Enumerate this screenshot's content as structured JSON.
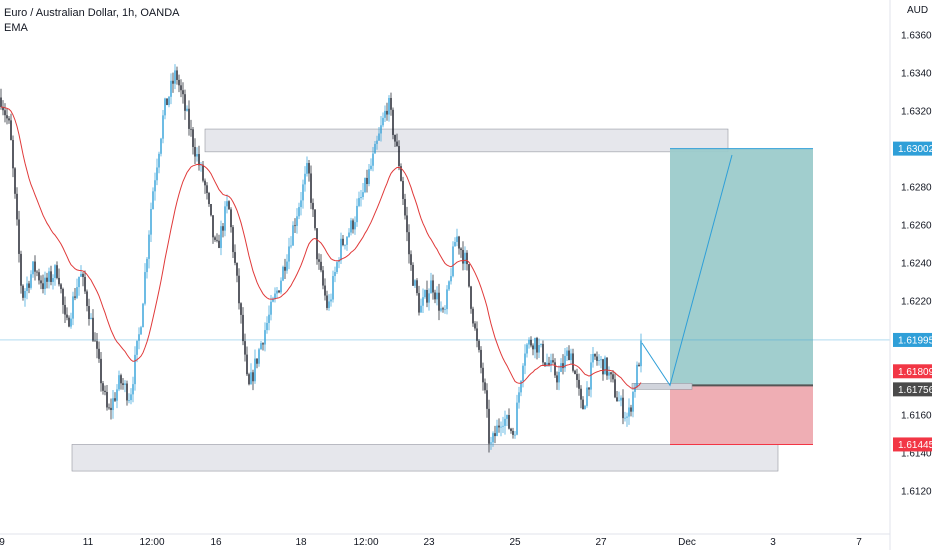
{
  "header": {
    "symbol_line": "Euro / Australian Dollar, 1h, OANDA",
    "indicator": "EMA",
    "currency": "AUD"
  },
  "chart_data": {
    "type": "candlestick",
    "ylim": [
      1.6105,
      1.6375
    ],
    "y_ticks": [
      "1.63600",
      "1.63400",
      "1.63200",
      "1.62800",
      "1.62600",
      "1.62400",
      "1.62200",
      "1.61600",
      "1.61400",
      "1.61200"
    ],
    "x_ticks": [
      "9",
      "11",
      "12:00",
      "16",
      "18",
      "12:00",
      "23",
      "25",
      "27",
      "Dec",
      "3",
      "7"
    ],
    "price_labels": [
      {
        "text": "1.63002",
        "value": 1.63002,
        "color": "#2f9fd8"
      },
      {
        "text": "1.61995",
        "value": 1.61995,
        "color": "#2f9fd8"
      },
      {
        "text": "1.61809",
        "value": 1.61809,
        "color": "#f23645"
      },
      {
        "text": "1.61756",
        "value": 1.61756,
        "color": "#4a4a4a"
      },
      {
        "text": "1.61445",
        "value": 1.61445,
        "color": "#f23645"
      }
    ],
    "zones": [
      {
        "name": "resistance-zone",
        "top": 1.63105,
        "bottom": 1.62985
      },
      {
        "name": "support-zone",
        "top": 1.61445,
        "bottom": 1.61305
      }
    ],
    "position": {
      "entry": 1.61756,
      "target": 1.63002,
      "stop": 1.61445
    },
    "candle_series": {
      "up_color": "#2f9fd8",
      "down_color": "#131722",
      "ema_color": "#e03a3a"
    },
    "colors": {
      "zone_fill": "#d1d4dc",
      "profit_fill": "#9ccbcb",
      "loss_fill": "#eeaab0",
      "projection": "#2f9fd8"
    }
  }
}
